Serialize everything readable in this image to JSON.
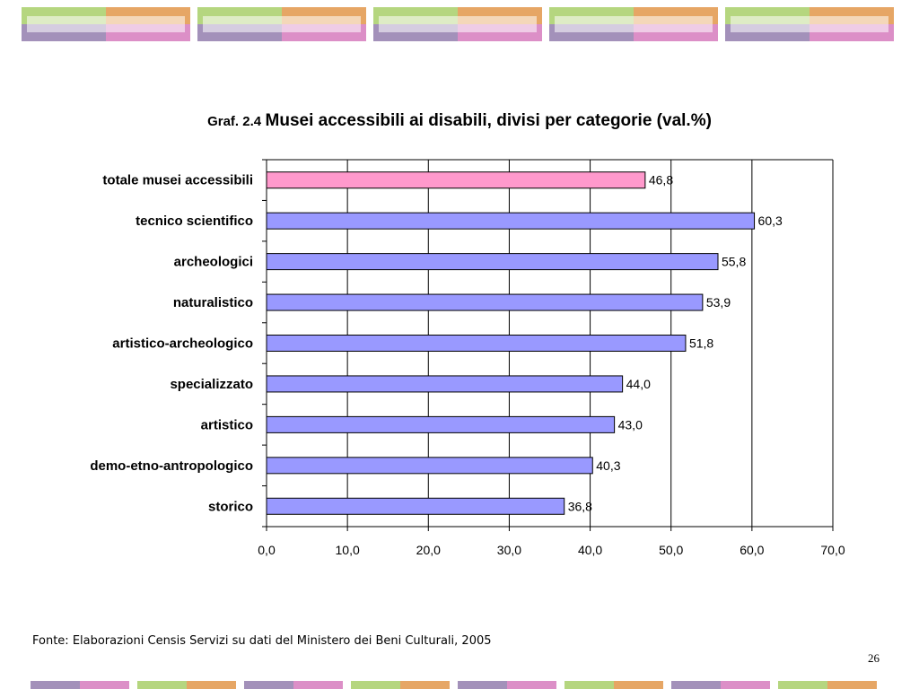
{
  "slide": {
    "title_prefix": "Graf. 2.4",
    "title": "Musei accessibili ai disabili, divisi per categorie  (val.%)",
    "source": "Fonte: Elaborazioni Censis Servizi su dati del Ministero dei Beni Culturali, 2005",
    "page_number": "26"
  },
  "colors": {
    "highlight_bar": "#ff99cc",
    "bar": "#9999ff",
    "deco_green": "#b5d67f",
    "deco_orange": "#e6a665",
    "deco_purple": "#a391ba",
    "deco_pink": "#dc8fc7"
  },
  "chart_data": {
    "type": "bar",
    "orientation": "horizontal",
    "categories": [
      "totale musei accessibili",
      "tecnico scientifico",
      "archeologici",
      "naturalistico",
      "artistico-archeologico",
      "specializzato",
      "artistico",
      "demo-etno-antropologico",
      "storico"
    ],
    "values": [
      46.8,
      60.3,
      55.8,
      53.9,
      51.8,
      44.0,
      43.0,
      40.3,
      36.8
    ],
    "value_labels": [
      "46,8",
      "60,3",
      "55,8",
      "53,9",
      "51,8",
      "44,0",
      "43,0",
      "40,3",
      "36,8"
    ],
    "highlight_index": 0,
    "xlim": [
      0,
      70
    ],
    "x_ticks": [
      0,
      10,
      20,
      30,
      40,
      50,
      60,
      70
    ],
    "x_tick_labels": [
      "0,0",
      "10,0",
      "20,0",
      "30,0",
      "40,0",
      "50,0",
      "60,0",
      "70,0"
    ],
    "grid": true
  }
}
